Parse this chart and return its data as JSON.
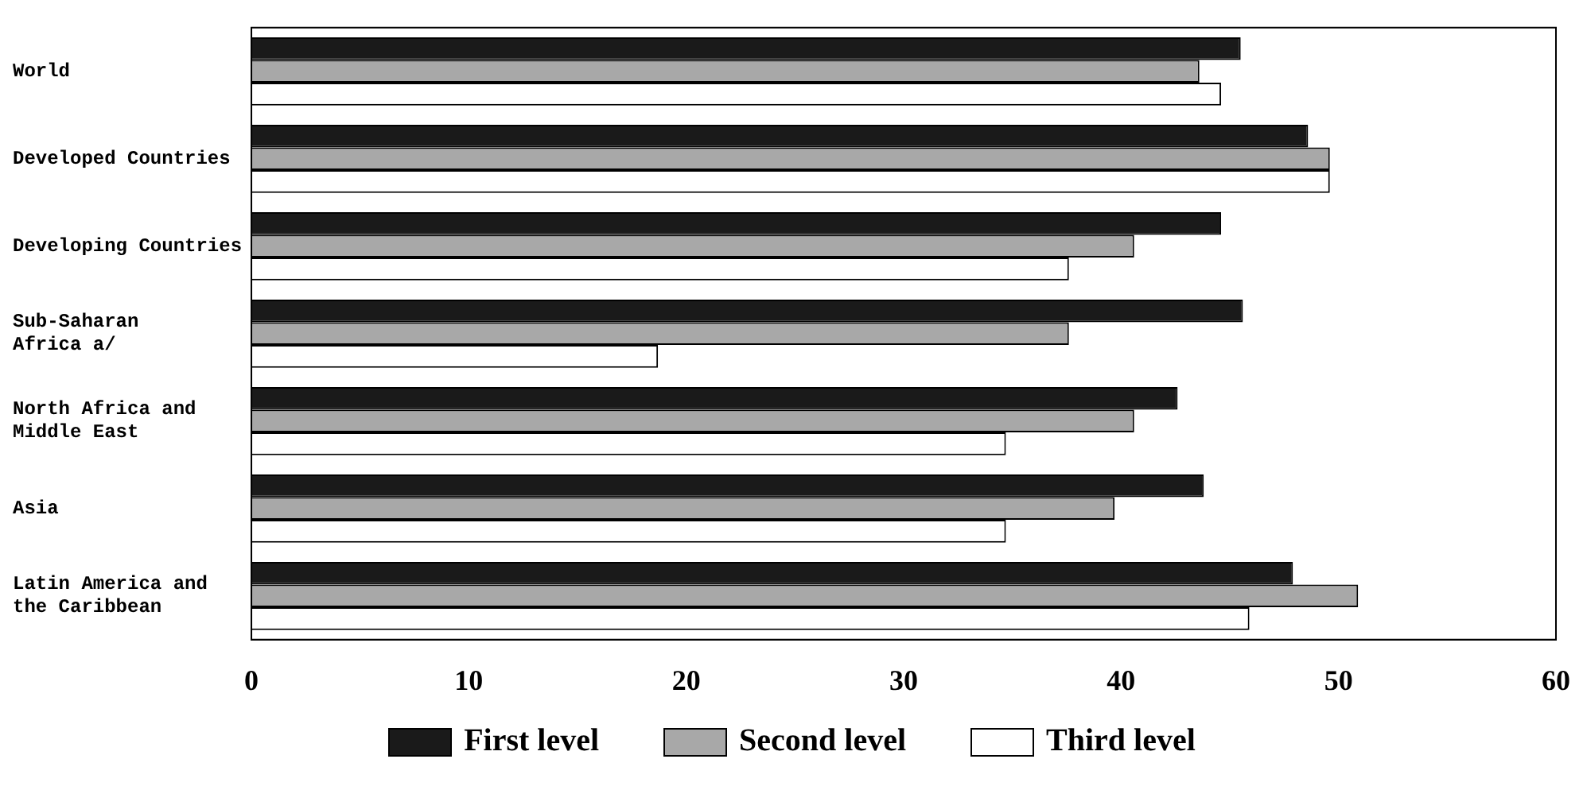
{
  "chart_data": {
    "type": "bar",
    "orientation": "horizontal",
    "categories": [
      "World",
      "Developed Countries",
      "Developing Countries",
      "Sub-Saharan\nAfrica a/",
      "North Africa and\nMiddle East",
      "Asia",
      "Latin America and\nthe Caribbean"
    ],
    "series": [
      {
        "name": "First level",
        "color": "#1a1a1a",
        "values": [
          45.5,
          48.6,
          44.6,
          45.6,
          42.6,
          43.8,
          47.9
        ]
      },
      {
        "name": "Second level",
        "color": "#a8a8a8",
        "values": [
          43.6,
          49.6,
          40.6,
          37.6,
          40.6,
          39.7,
          50.9
        ]
      },
      {
        "name": "Third level",
        "color": "#ffffff",
        "values": [
          44.6,
          49.6,
          37.6,
          18.7,
          34.7,
          34.7,
          45.9
        ]
      }
    ],
    "xlim": [
      0,
      60
    ],
    "xticks": [
      0,
      10,
      20,
      30,
      40,
      50,
      60
    ],
    "grid": false,
    "legend": "bottom"
  }
}
